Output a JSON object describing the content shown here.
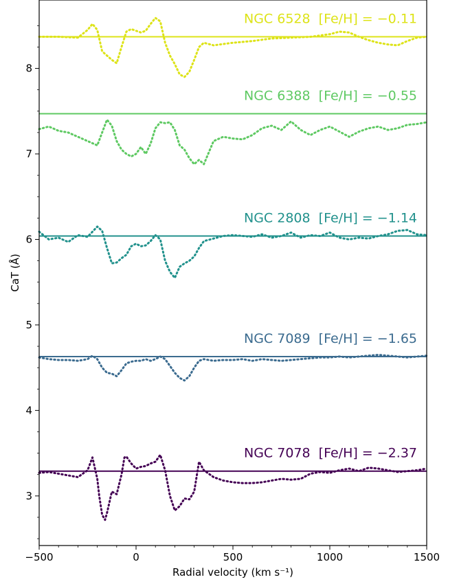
{
  "chart_data": {
    "type": "line",
    "xlabel": "Radial velocity (km s⁻¹)",
    "ylabel": "CaT (Å)",
    "xlim": [
      -500,
      1500
    ],
    "ylim": [
      2.42,
      8.8
    ],
    "x_ticks": [
      -500,
      0,
      500,
      1000,
      1500
    ],
    "x_tick_labels": [
      "−500",
      "0",
      "500",
      "1000",
      "1500"
    ],
    "y_ticks": [
      3,
      4,
      5,
      6,
      7,
      8
    ],
    "y_tick_labels": [
      "3",
      "4",
      "5",
      "6",
      "7",
      "8"
    ],
    "grid": false,
    "legend": "labels placed above each curve",
    "series": [
      {
        "name": "NGC 6528  [Fe/H] = −0.11",
        "color": "#dde318",
        "baseline": 8.37,
        "x": [
          -500,
          -400,
          -300,
          -250,
          -225,
          -200,
          -175,
          -150,
          -125,
          -100,
          -75,
          -50,
          -25,
          0,
          25,
          50,
          75,
          100,
          125,
          150,
          175,
          200,
          225,
          250,
          275,
          300,
          325,
          350,
          400,
          500,
          600,
          700,
          800,
          900,
          1000,
          1050,
          1100,
          1150,
          1200,
          1250,
          1300,
          1350,
          1400,
          1450,
          1500
        ],
        "y": [
          8.37,
          8.37,
          8.36,
          8.45,
          8.52,
          8.45,
          8.2,
          8.15,
          8.1,
          8.06,
          8.25,
          8.43,
          8.46,
          8.44,
          8.42,
          8.44,
          8.52,
          8.59,
          8.55,
          8.3,
          8.15,
          8.05,
          7.93,
          7.9,
          7.96,
          8.1,
          8.25,
          8.3,
          8.27,
          8.3,
          8.32,
          8.35,
          8.36,
          8.37,
          8.4,
          8.43,
          8.42,
          8.37,
          8.33,
          8.3,
          8.28,
          8.27,
          8.32,
          8.36,
          8.37
        ]
      },
      {
        "name": "NGC 6388  [Fe/H] = −0.55",
        "color": "#5ec962",
        "baseline": 7.47,
        "x": [
          -500,
          -450,
          -400,
          -350,
          -300,
          -250,
          -200,
          -175,
          -150,
          -125,
          -100,
          -75,
          -50,
          -25,
          0,
          25,
          50,
          75,
          100,
          125,
          150,
          175,
          200,
          225,
          250,
          275,
          300,
          325,
          350,
          400,
          450,
          500,
          550,
          600,
          650,
          700,
          750,
          800,
          850,
          900,
          950,
          1000,
          1050,
          1100,
          1150,
          1200,
          1250,
          1300,
          1350,
          1400,
          1450,
          1500
        ],
        "y": [
          7.29,
          7.32,
          7.27,
          7.25,
          7.2,
          7.15,
          7.1,
          7.25,
          7.4,
          7.33,
          7.15,
          7.05,
          7.0,
          6.97,
          7.0,
          7.08,
          7.0,
          7.12,
          7.3,
          7.37,
          7.36,
          7.37,
          7.28,
          7.1,
          7.05,
          6.95,
          6.88,
          6.93,
          6.88,
          7.15,
          7.2,
          7.18,
          7.17,
          7.22,
          7.3,
          7.33,
          7.28,
          7.38,
          7.28,
          7.22,
          7.28,
          7.32,
          7.26,
          7.2,
          7.26,
          7.3,
          7.32,
          7.28,
          7.3,
          7.34,
          7.35,
          7.37
        ]
      },
      {
        "name": "NGC 2808  [Fe/H] = −1.14",
        "color": "#21918c",
        "baseline": 6.04,
        "x": [
          -500,
          -450,
          -400,
          -350,
          -300,
          -250,
          -200,
          -175,
          -150,
          -125,
          -100,
          -75,
          -50,
          -25,
          0,
          25,
          50,
          75,
          100,
          125,
          150,
          175,
          200,
          225,
          250,
          275,
          300,
          325,
          350,
          400,
          450,
          500,
          550,
          600,
          650,
          700,
          750,
          800,
          850,
          900,
          950,
          1000,
          1050,
          1100,
          1150,
          1200,
          1250,
          1300,
          1350,
          1400,
          1450,
          1500
        ],
        "y": [
          6.09,
          6.0,
          6.02,
          5.97,
          6.05,
          6.03,
          6.15,
          6.1,
          5.9,
          5.72,
          5.73,
          5.78,
          5.82,
          5.92,
          5.95,
          5.92,
          5.93,
          5.98,
          6.05,
          6.0,
          5.75,
          5.62,
          5.55,
          5.68,
          5.72,
          5.75,
          5.8,
          5.9,
          5.98,
          6.01,
          6.04,
          6.05,
          6.04,
          6.03,
          6.06,
          6.02,
          6.04,
          6.08,
          6.02,
          6.05,
          6.04,
          6.08,
          6.02,
          6.0,
          6.02,
          6.01,
          6.04,
          6.06,
          6.1,
          6.11,
          6.06,
          6.05
        ]
      },
      {
        "name": "NGC 7089  [Fe/H] = −1.65",
        "color": "#3b6b8f",
        "baseline": 4.63,
        "x": [
          -500,
          -450,
          -400,
          -350,
          -300,
          -250,
          -225,
          -200,
          -175,
          -150,
          -125,
          -100,
          -75,
          -50,
          -25,
          0,
          25,
          50,
          75,
          100,
          125,
          150,
          175,
          200,
          225,
          250,
          275,
          300,
          325,
          350,
          400,
          450,
          500,
          550,
          600,
          650,
          700,
          750,
          800,
          850,
          900,
          950,
          1000,
          1050,
          1100,
          1150,
          1200,
          1250,
          1300,
          1350,
          1400,
          1450,
          1500
        ],
        "y": [
          4.62,
          4.6,
          4.59,
          4.59,
          4.58,
          4.6,
          4.64,
          4.6,
          4.5,
          4.44,
          4.43,
          4.4,
          4.47,
          4.55,
          4.57,
          4.58,
          4.58,
          4.6,
          4.58,
          4.6,
          4.63,
          4.6,
          4.52,
          4.44,
          4.38,
          4.35,
          4.4,
          4.5,
          4.58,
          4.6,
          4.58,
          4.59,
          4.59,
          4.6,
          4.58,
          4.6,
          4.59,
          4.58,
          4.59,
          4.6,
          4.61,
          4.62,
          4.62,
          4.63,
          4.62,
          4.63,
          4.64,
          4.65,
          4.64,
          4.63,
          4.62,
          4.63,
          4.64
        ]
      },
      {
        "name": "NGC 7078  [Fe/H] = −2.37",
        "color": "#440154",
        "baseline": 3.29,
        "x": [
          -500,
          -450,
          -400,
          -350,
          -300,
          -250,
          -225,
          -200,
          -190,
          -175,
          -160,
          -150,
          -125,
          -100,
          -75,
          -60,
          -50,
          -25,
          0,
          25,
          50,
          75,
          100,
          125,
          150,
          175,
          200,
          225,
          250,
          275,
          300,
          325,
          350,
          400,
          450,
          500,
          550,
          600,
          650,
          700,
          750,
          800,
          850,
          900,
          950,
          1000,
          1050,
          1100,
          1150,
          1200,
          1250,
          1300,
          1350,
          1400,
          1450,
          1500
        ],
        "y": [
          3.27,
          3.28,
          3.26,
          3.24,
          3.22,
          3.3,
          3.45,
          3.2,
          3.0,
          2.78,
          2.72,
          2.8,
          3.05,
          3.02,
          3.25,
          3.45,
          3.46,
          3.38,
          3.32,
          3.34,
          3.35,
          3.38,
          3.4,
          3.48,
          3.3,
          3.0,
          2.83,
          2.88,
          2.97,
          2.96,
          3.05,
          3.4,
          3.3,
          3.22,
          3.18,
          3.16,
          3.15,
          3.15,
          3.16,
          3.18,
          3.2,
          3.19,
          3.2,
          3.26,
          3.28,
          3.27,
          3.3,
          3.32,
          3.29,
          3.33,
          3.32,
          3.3,
          3.28,
          3.29,
          3.3,
          3.32
        ]
      }
    ]
  }
}
